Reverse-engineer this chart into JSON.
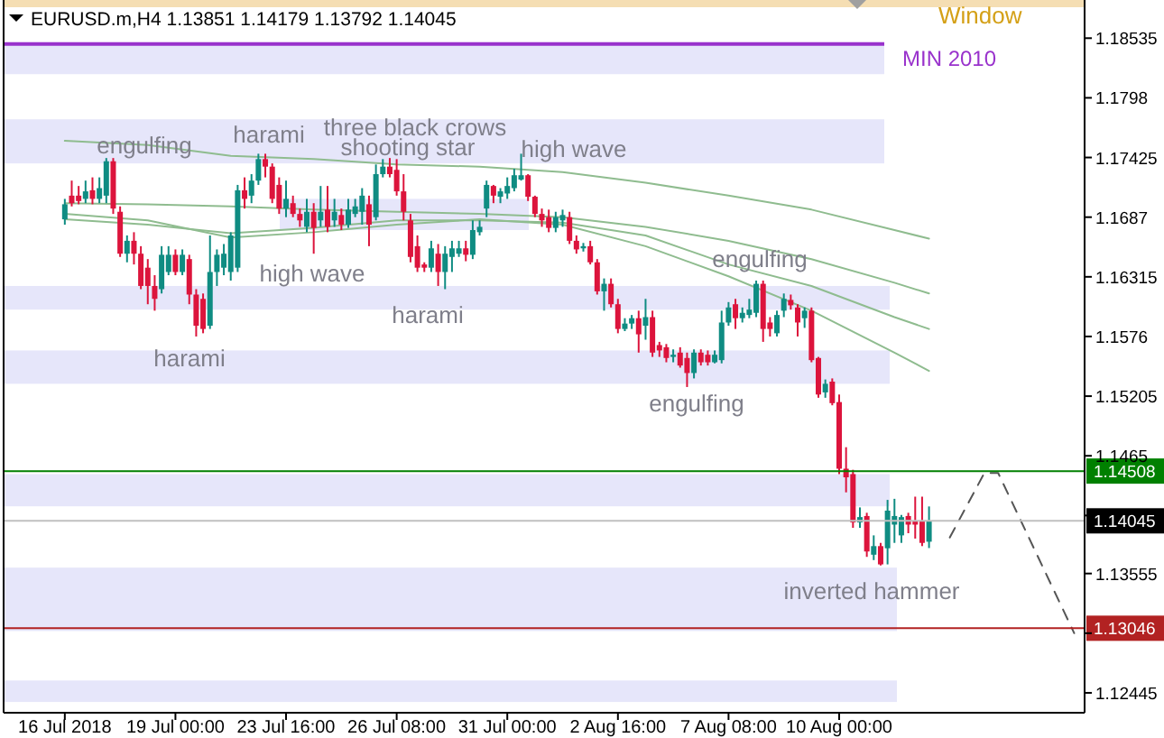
{
  "chart_data": {
    "type": "candlestick",
    "title": "EURUSD.m,H4  1.13851 1.14179 1.13792 1.14045",
    "categories": [
      "16 Jul 2018",
      null,
      null,
      null,
      null,
      null,
      null,
      null,
      null,
      null,
      null,
      null,
      null,
      null,
      null,
      null,
      "19 Jul 00:00",
      null,
      null,
      null,
      null,
      null,
      null,
      null,
      null,
      null,
      null,
      null,
      null,
      null,
      null,
      null,
      "23 Jul 16:00",
      null,
      null,
      null,
      null,
      null,
      null,
      null,
      null,
      null,
      null,
      null,
      null,
      null,
      null,
      null,
      "26 Jul 08:00",
      null,
      null,
      null,
      null,
      null,
      null,
      null,
      null,
      null,
      null,
      null,
      null,
      null,
      null,
      null,
      "31 Jul 00:00",
      null,
      null,
      null,
      null,
      null,
      null,
      null,
      null,
      null,
      null,
      null,
      null,
      null,
      null,
      null,
      "2 Aug 16:00",
      null,
      null,
      null,
      null,
      null,
      null,
      null,
      null,
      null,
      null,
      null,
      null,
      null,
      null,
      null,
      "7 Aug 08:00",
      null,
      null,
      null,
      null,
      null,
      null,
      null,
      null,
      null,
      null,
      null,
      null,
      null,
      null,
      null,
      "10 Aug 00:00",
      null,
      null,
      null,
      null,
      null,
      null,
      null,
      null,
      null,
      null,
      null,
      null,
      null,
      null,
      null,
      null,
      null,
      null,
      null,
      null,
      null,
      null,
      null,
      null,
      null,
      null,
      null,
      null,
      null,
      null,
      null,
      null,
      null,
      null,
      null
    ],
    "ohlc": [
      [
        1.1685,
        1.1704,
        1.168,
        1.1699
      ],
      [
        1.1707,
        1.1721,
        1.1697,
        1.17
      ],
      [
        1.1707,
        1.1716,
        1.1699,
        1.1702
      ],
      [
        1.1704,
        1.1721,
        1.17,
        1.1711
      ],
      [
        1.1712,
        1.1724,
        1.1699,
        1.1704
      ],
      [
        1.1704,
        1.1724,
        1.17,
        1.1714
      ],
      [
        1.1707,
        1.1742,
        1.17,
        1.1739
      ],
      [
        1.1739,
        1.1742,
        1.169,
        1.1695
      ],
      [
        1.1692,
        1.1697,
        1.165,
        1.1653
      ],
      [
        1.1653,
        1.167,
        1.1645,
        1.1665
      ],
      [
        1.1665,
        1.1673,
        1.1643,
        1.1653
      ],
      [
        1.1653,
        1.166,
        1.162,
        1.1623
      ],
      [
        1.164,
        1.1648,
        1.1606,
        1.1623
      ],
      [
        1.1623,
        1.1633,
        1.16,
        1.1611
      ],
      [
        1.162,
        1.166,
        1.1616,
        1.1652
      ],
      [
        1.1636,
        1.166,
        1.1633,
        1.1652
      ],
      [
        1.1652,
        1.1657,
        1.1633,
        1.1636
      ],
      [
        1.1636,
        1.1657,
        1.1633,
        1.1652
      ],
      [
        1.1648,
        1.1652,
        1.1606,
        1.1615
      ],
      [
        1.1615,
        1.162,
        1.1576,
        1.1586
      ],
      [
        1.1611,
        1.1616,
        1.1579,
        1.1583
      ],
      [
        1.1586,
        1.167,
        1.1583,
        1.1636
      ],
      [
        1.1636,
        1.1657,
        1.1623,
        1.1652
      ],
      [
        1.164,
        1.1662,
        1.1633,
        1.1653
      ],
      [
        1.1636,
        1.1673,
        1.1628,
        1.167
      ],
      [
        1.164,
        1.1717,
        1.1636,
        1.1712
      ],
      [
        1.1712,
        1.1724,
        1.1695,
        1.1704
      ],
      [
        1.1707,
        1.1727,
        1.17,
        1.1721
      ],
      [
        1.1721,
        1.1746,
        1.1717,
        1.1741
      ],
      [
        1.1741,
        1.1746,
        1.1724,
        1.1734
      ],
      [
        1.1734,
        1.1737,
        1.17,
        1.1704
      ],
      [
        1.1717,
        1.1724,
        1.169,
        1.1695
      ],
      [
        1.1695,
        1.1721,
        1.1687,
        1.1704
      ],
      [
        1.17,
        1.1707,
        1.1687,
        1.169
      ],
      [
        1.169,
        1.1695,
        1.1678,
        1.1684
      ],
      [
        1.1678,
        1.1704,
        1.1673,
        1.1692
      ],
      [
        1.1692,
        1.17,
        1.1653,
        1.1677
      ],
      [
        1.1684,
        1.1716,
        1.1678,
        1.1692
      ],
      [
        1.1694,
        1.1716,
        1.1673,
        1.1678
      ],
      [
        1.1684,
        1.1704,
        1.1678,
        1.1692
      ],
      [
        1.1689,
        1.1695,
        1.1675,
        1.168
      ],
      [
        1.168,
        1.1704,
        1.1677,
        1.1694
      ],
      [
        1.169,
        1.1704,
        1.1687,
        1.1697
      ],
      [
        1.1692,
        1.1714,
        1.168,
        1.1707
      ],
      [
        1.1699,
        1.1707,
        1.166,
        1.168
      ],
      [
        1.1687,
        1.1736,
        1.1684,
        1.1727
      ],
      [
        1.1727,
        1.1741,
        1.1724,
        1.1734
      ],
      [
        1.1734,
        1.1742,
        1.1724,
        1.1727
      ],
      [
        1.1731,
        1.1741,
        1.1707,
        1.1711
      ],
      [
        1.1711,
        1.1727,
        1.1684,
        1.1692
      ],
      [
        1.1684,
        1.169,
        1.1645,
        1.165
      ],
      [
        1.166,
        1.167,
        1.1636,
        1.164
      ],
      [
        1.1643,
        1.1645,
        1.1636,
        1.164
      ],
      [
        1.164,
        1.1665,
        1.1636,
        1.1658
      ],
      [
        1.1653,
        1.1662,
        1.1623,
        1.1636
      ],
      [
        1.1636,
        1.166,
        1.162,
        1.1653
      ],
      [
        1.165,
        1.1665,
        1.1636,
        1.1658
      ],
      [
        1.1653,
        1.1665,
        1.165,
        1.1658
      ],
      [
        1.1658,
        1.1665,
        1.1646,
        1.1652
      ],
      [
        1.1652,
        1.1684,
        1.1648,
        1.1675
      ],
      [
        1.1673,
        1.1684,
        1.167,
        1.1678
      ],
      [
        1.1695,
        1.1721,
        1.1687,
        1.1717
      ],
      [
        1.1716,
        1.1717,
        1.17,
        1.1707
      ],
      [
        1.1706,
        1.1714,
        1.17,
        1.1711
      ],
      [
        1.1709,
        1.1724,
        1.1704,
        1.1716
      ],
      [
        1.1714,
        1.1732,
        1.1711,
        1.1726
      ],
      [
        1.1722,
        1.1746,
        1.1721,
        1.1726
      ],
      [
        1.1726,
        1.1727,
        1.1702,
        1.1706
      ],
      [
        1.1706,
        1.1707,
        1.1687,
        1.169
      ],
      [
        1.169,
        1.1695,
        1.1678,
        1.1684
      ],
      [
        1.1687,
        1.1694,
        1.1673,
        1.1677
      ],
      [
        1.1677,
        1.1692,
        1.1673,
        1.1687
      ],
      [
        1.1684,
        1.1694,
        1.1678,
        1.1689
      ],
      [
        1.1687,
        1.1692,
        1.1662,
        1.1665
      ],
      [
        1.1665,
        1.167,
        1.1653,
        1.1657
      ],
      [
        1.1658,
        1.1663,
        1.1655,
        1.166
      ],
      [
        1.166,
        1.1665,
        1.1643,
        1.1645
      ],
      [
        1.1645,
        1.1648,
        1.1615,
        1.1618
      ],
      [
        1.1618,
        1.163,
        1.16,
        1.1625
      ],
      [
        1.1625,
        1.163,
        1.1603,
        1.1606
      ],
      [
        1.1606,
        1.1611,
        1.1579,
        1.1583
      ],
      [
        1.1583,
        1.1593,
        1.1581,
        1.1588
      ],
      [
        1.1588,
        1.1596,
        1.1583,
        1.1593
      ],
      [
        1.1593,
        1.16,
        1.1561,
        1.1578
      ],
      [
        1.1586,
        1.1611,
        1.1573,
        1.1594
      ],
      [
        1.1594,
        1.16,
        1.1557,
        1.1561
      ],
      [
        1.1568,
        1.1571,
        1.1557,
        1.1563
      ],
      [
        1.1566,
        1.1569,
        1.1552,
        1.1556
      ],
      [
        1.1557,
        1.1564,
        1.1552,
        1.1559
      ],
      [
        1.1561,
        1.1566,
        1.1547,
        1.1549
      ],
      [
        1.1556,
        1.1561,
        1.1529,
        1.1542
      ],
      [
        1.1542,
        1.1564,
        1.1537,
        1.1561
      ],
      [
        1.1561,
        1.1564,
        1.1549,
        1.1552
      ],
      [
        1.1559,
        1.1563,
        1.1549,
        1.1552
      ],
      [
        1.1552,
        1.1563,
        1.1551,
        1.1559
      ],
      [
        1.1554,
        1.16,
        1.1551,
        1.1589
      ],
      [
        1.1589,
        1.1608,
        1.1586,
        1.1603
      ],
      [
        1.1606,
        1.1611,
        1.1583,
        1.1593
      ],
      [
        1.1593,
        1.1603,
        1.1589,
        1.1598
      ],
      [
        1.1596,
        1.1611,
        1.1593,
        1.1601
      ],
      [
        1.1598,
        1.1628,
        1.1594,
        1.1625
      ],
      [
        1.1625,
        1.1628,
        1.1571,
        1.1583
      ],
      [
        1.1589,
        1.1594,
        1.1576,
        1.1583
      ],
      [
        1.1579,
        1.16,
        1.1576,
        1.1596
      ],
      [
        1.16,
        1.1616,
        1.1594,
        1.1611
      ],
      [
        1.161,
        1.1615,
        1.1601,
        1.1605
      ],
      [
        1.1603,
        1.1606,
        1.1576,
        1.1589
      ],
      [
        1.1593,
        1.1603,
        1.1584,
        1.16
      ],
      [
        1.16,
        1.1603,
        1.1552,
        1.1554
      ],
      [
        1.1556,
        1.1557,
        1.1519,
        1.1522
      ],
      [
        1.1524,
        1.1536,
        1.1519,
        1.1532
      ],
      [
        1.1534,
        1.1537,
        1.1512,
        1.1514
      ],
      [
        1.1515,
        1.1522,
        1.1448,
        1.1453
      ],
      [
        1.1453,
        1.1473,
        1.1431,
        1.1445
      ],
      [
        1.1448,
        1.1452,
        1.1398,
        1.1403
      ],
      [
        1.1403,
        1.1417,
        1.1398,
        1.1408
      ],
      [
        1.1409,
        1.1412,
        1.1371,
        1.1376
      ],
      [
        1.1373,
        1.1391,
        1.1368,
        1.1381
      ],
      [
        1.1381,
        1.1384,
        1.1363,
        1.1364
      ],
      [
        1.1379,
        1.1424,
        1.1364,
        1.1414
      ],
      [
        1.1401,
        1.1425,
        1.1384,
        1.1409
      ],
      [
        1.1391,
        1.141,
        1.1384,
        1.1408
      ],
      [
        1.1409,
        1.1412,
        1.1393,
        1.1401
      ],
      [
        1.1404,
        1.1427,
        1.1388,
        1.1401
      ],
      [
        1.1404,
        1.1427,
        1.1381,
        1.1384
      ],
      [
        1.13851,
        1.14179,
        1.13792,
        1.14045
      ],
      null,
      null,
      null,
      null,
      null,
      null,
      null,
      null,
      null,
      null,
      null,
      null,
      null,
      null,
      null,
      null,
      null,
      null,
      null,
      null,
      null,
      null
    ],
    "series": [
      {
        "type": "line",
        "color": "#8fbc8f",
        "values": [
          1.1758,
          null,
          null,
          null,
          null,
          null,
          null,
          null,
          null,
          null,
          null,
          null,
          1.1754,
          null,
          null,
          null,
          null,
          null,
          null,
          null,
          null,
          null,
          null,
          null,
          1.1744,
          null,
          null,
          null,
          null,
          null,
          null,
          null,
          null,
          null,
          null,
          null,
          1.1741,
          null,
          null,
          null,
          null,
          null,
          null,
          null,
          null,
          null,
          null,
          null,
          1.1736,
          null,
          null,
          null,
          null,
          null,
          null,
          null,
          null,
          null,
          null,
          null,
          1.1734,
          null,
          null,
          null,
          null,
          null,
          null,
          null,
          null,
          null,
          null,
          null,
          1.1729,
          null,
          null,
          null,
          null,
          null,
          null,
          null,
          null,
          null,
          null,
          null,
          1.1719,
          null,
          null,
          null,
          null,
          null,
          null,
          null,
          null,
          null,
          null,
          null,
          1.1707,
          null,
          null,
          null,
          null,
          null,
          null,
          null,
          null,
          null,
          null,
          null,
          1.1694,
          null,
          null,
          null,
          null,
          null,
          null,
          null,
          null,
          null,
          null,
          null,
          1.1675,
          null,
          null,
          null,
          null,
          1.1667,
          null,
          null,
          null,
          null,
          null,
          null,
          null,
          null,
          null,
          null,
          null,
          null,
          null,
          null,
          null,
          null,
          null,
          null,
          null,
          null,
          null,
          null
        ]
      },
      {
        "type": "line",
        "color": "#8fbc8f",
        "values": [
          1.17,
          null,
          null,
          null,
          null,
          null,
          null,
          null,
          null,
          null,
          null,
          null,
          1.1699,
          null,
          null,
          null,
          null,
          null,
          null,
          null,
          null,
          null,
          null,
          null,
          1.1697,
          null,
          null,
          null,
          null,
          null,
          null,
          null,
          null,
          null,
          null,
          null,
          1.1694,
          null,
          null,
          null,
          null,
          null,
          null,
          null,
          null,
          null,
          null,
          null,
          1.1692,
          null,
          null,
          null,
          null,
          null,
          null,
          null,
          null,
          null,
          null,
          null,
          1.169,
          null,
          null,
          null,
          null,
          null,
          null,
          null,
          null,
          null,
          null,
          null,
          1.1687,
          null,
          null,
          null,
          null,
          null,
          null,
          null,
          null,
          null,
          null,
          null,
          1.1678,
          null,
          null,
          null,
          null,
          null,
          null,
          null,
          null,
          null,
          null,
          null,
          1.1665,
          null,
          null,
          null,
          null,
          null,
          null,
          null,
          null,
          null,
          null,
          null,
          1.1648,
          null,
          null,
          null,
          null,
          null,
          null,
          null,
          null,
          null,
          null,
          null,
          1.1626,
          null,
          null,
          null,
          null,
          1.1616,
          null,
          null,
          null,
          null,
          null,
          null,
          null,
          null,
          null,
          null,
          null,
          null,
          null,
          null,
          null,
          null,
          null,
          null,
          null,
          null,
          null,
          null
        ]
      },
      {
        "type": "line",
        "color": "#8fbc8f",
        "values": [
          1.1685,
          null,
          null,
          null,
          null,
          null,
          null,
          null,
          null,
          null,
          null,
          null,
          1.168,
          null,
          null,
          null,
          null,
          null,
          null,
          null,
          null,
          null,
          null,
          null,
          1.1672,
          null,
          null,
          null,
          null,
          null,
          null,
          null,
          null,
          null,
          null,
          null,
          1.1677,
          null,
          null,
          null,
          null,
          null,
          null,
          null,
          null,
          null,
          null,
          null,
          1.1684,
          null,
          null,
          null,
          null,
          null,
          null,
          null,
          null,
          null,
          null,
          null,
          1.1684,
          null,
          null,
          null,
          null,
          null,
          null,
          null,
          null,
          null,
          null,
          null,
          1.1682,
          null,
          null,
          null,
          null,
          null,
          null,
          null,
          null,
          null,
          null,
          null,
          1.167,
          null,
          null,
          null,
          null,
          null,
          null,
          null,
          null,
          null,
          null,
          null,
          1.1643,
          null,
          null,
          null,
          null,
          null,
          null,
          null,
          null,
          null,
          null,
          null,
          1.1623,
          null,
          null,
          null,
          null,
          null,
          null,
          null,
          null,
          null,
          null,
          null,
          1.1594,
          null,
          null,
          null,
          null,
          1.1583,
          null,
          null,
          null,
          null,
          null,
          null,
          null,
          null,
          null,
          null,
          null,
          null,
          null,
          null,
          null,
          null,
          null,
          null,
          null,
          null,
          null,
          null
        ]
      },
      {
        "type": "line",
        "color": "#8fbc8f",
        "values": [
          1.169,
          null,
          null,
          null,
          null,
          null,
          null,
          null,
          null,
          null,
          null,
          null,
          1.1684,
          null,
          null,
          null,
          null,
          null,
          null,
          null,
          null,
          null,
          null,
          null,
          1.1668,
          null,
          null,
          null,
          null,
          null,
          null,
          null,
          null,
          null,
          null,
          null,
          1.1673,
          null,
          null,
          null,
          null,
          null,
          null,
          null,
          null,
          null,
          null,
          null,
          1.168,
          null,
          null,
          null,
          null,
          null,
          null,
          null,
          null,
          null,
          null,
          null,
          1.1685,
          null,
          null,
          null,
          null,
          null,
          null,
          null,
          null,
          null,
          null,
          null,
          1.168,
          null,
          null,
          null,
          null,
          null,
          null,
          null,
          null,
          null,
          null,
          null,
          1.166,
          null,
          null,
          null,
          null,
          null,
          null,
          null,
          null,
          null,
          null,
          null,
          1.1632,
          null,
          null,
          null,
          null,
          null,
          null,
          null,
          null,
          null,
          null,
          null,
          1.16,
          null,
          null,
          null,
          null,
          null,
          null,
          null,
          null,
          null,
          null,
          null,
          1.1561,
          null,
          null,
          null,
          null,
          1.1544,
          null,
          null,
          null,
          null,
          null,
          null,
          null,
          null,
          null,
          null,
          null,
          null,
          null,
          null,
          null,
          null,
          null,
          null,
          null,
          null,
          null,
          null
        ]
      },
      {
        "type": "line",
        "color": "#555555",
        "line_style": "dashed",
        "values": [
          null,
          null,
          null,
          null,
          null,
          null,
          null,
          null,
          null,
          null,
          null,
          null,
          null,
          null,
          null,
          null,
          null,
          null,
          null,
          null,
          null,
          null,
          null,
          null,
          null,
          null,
          null,
          null,
          null,
          null,
          null,
          null,
          null,
          null,
          null,
          null,
          null,
          null,
          null,
          null,
          null,
          null,
          null,
          null,
          null,
          null,
          null,
          null,
          null,
          null,
          null,
          null,
          null,
          null,
          null,
          null,
          null,
          null,
          null,
          null,
          null,
          null,
          null,
          null,
          null,
          null,
          null,
          null,
          null,
          null,
          null,
          null,
          null,
          null,
          null,
          null,
          null,
          null,
          null,
          null,
          null,
          null,
          null,
          null,
          null,
          null,
          null,
          null,
          null,
          null,
          null,
          null,
          null,
          null,
          null,
          null,
          null,
          null,
          null,
          null,
          null,
          null,
          null,
          null,
          null,
          null,
          null,
          null,
          null,
          null,
          null,
          null,
          null,
          null,
          null,
          null,
          null,
          null,
          null,
          null,
          null,
          null,
          null,
          null,
          null,
          null,
          null,
          null,
          1.1389,
          null,
          null,
          null,
          null,
          1.1449,
          null,
          1.1449,
          null,
          null,
          null,
          null,
          null,
          null,
          null,
          null,
          null,
          null,
          1.13,
          null
        ]
      }
    ],
    "ylim": [
      1.1226,
      1.1889
    ],
    "yticks": [
      1.18535,
      1.1798,
      1.17425,
      1.1687,
      1.16315,
      1.1576,
      1.15205,
      1.1465,
      {
        "value": 1.14095,
        "label": null
      },
      1.13555,
      {
        "value": 1.13,
        "label": null
      },
      1.12445
    ],
    "ref_lines": [
      {
        "axis": "y",
        "value": 1.1848,
        "label": "MIN 2010",
        "color": "#9932cc"
      },
      {
        "axis": "y",
        "value": 1.14508,
        "label": "1.14508",
        "color": "#008000"
      },
      {
        "axis": "y",
        "value": 1.14045,
        "label": "1.14045",
        "color": "#c0c0c0"
      },
      {
        "axis": "y",
        "value": 1.13046,
        "label": "1.13046",
        "color": "#b22222"
      }
    ],
    "bands": [
      {
        "axis": "y",
        "from": 1.182,
        "to": 1.1847,
        "color": "#e6e6fa"
      },
      {
        "axis": "y",
        "from": 1.1737,
        "to": 1.1778,
        "color": "#e6e6fa"
      },
      {
        "axis": "y",
        "from": 1.1675,
        "to": 1.1704,
        "color": "#e6e6fa"
      },
      {
        "axis": "y",
        "from": 1.1601,
        "to": 1.1623,
        "color": "#e6e6fa"
      },
      {
        "axis": "y",
        "from": 1.1532,
        "to": 1.1563,
        "color": "#e6e6fa"
      },
      {
        "axis": "y",
        "from": 1.1418,
        "to": 1.1448,
        "color": "#e6e6fa"
      },
      {
        "axis": "y",
        "from": 1.1302,
        "to": 1.1361,
        "color": "#e6e6fa"
      },
      {
        "axis": "y",
        "from": 1.1236,
        "to": 1.1256,
        "color": "#e6e6fa"
      }
    ],
    "annotations": [
      "engulfing",
      "harami",
      "three black crows",
      "shooting star",
      "high wave",
      "high wave",
      "harami",
      "harami",
      "engulfing",
      "engulfing",
      "inverted hammer",
      "Window"
    ]
  }
}
